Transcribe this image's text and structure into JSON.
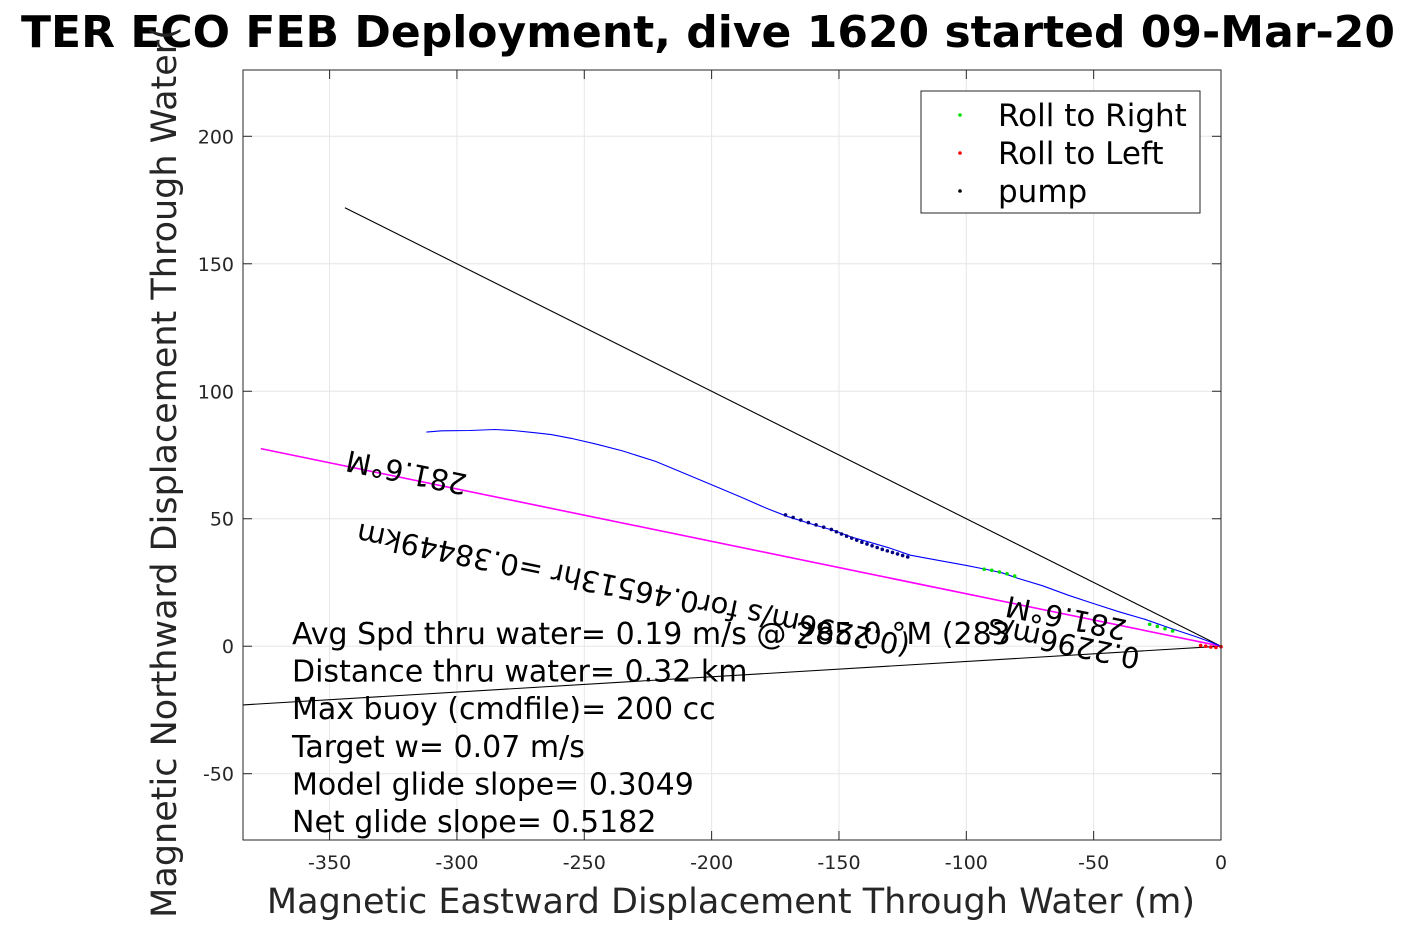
{
  "chart_data": {
    "type": "scatter",
    "title": "TER ECO FEB Deployment, dive 1620 started 09-Mar-20",
    "xlabel": "Magnetic Eastward Displacement Through Water (m)",
    "ylabel": "Magnetic Northward Displacement Through Water(",
    "xlim": [
      -384,
      0
    ],
    "ylim": [
      -76,
      226
    ],
    "xticks": [
      -350,
      -300,
      -250,
      -200,
      -150,
      -100,
      -50,
      0
    ],
    "yticks": [
      -50,
      0,
      50,
      100,
      150,
      200
    ],
    "xtick_labels": [
      "-350",
      "-300",
      "-250",
      "-200",
      "-150",
      "-100",
      "-50",
      "0"
    ],
    "ytick_labels": [
      "-50",
      "0",
      "50",
      "100",
      "150",
      "200"
    ],
    "grid": true,
    "legend": {
      "placement": "top-right",
      "entries": [
        {
          "name": "Roll to Right",
          "color": "#00dd00"
        },
        {
          "name": "Roll to Left",
          "color": "#ff0000"
        },
        {
          "name": "pump",
          "color": "#000000"
        }
      ]
    },
    "lines": [
      {
        "name": "heading-line-upper",
        "color": "#000000",
        "x": [
          -344,
          0
        ],
        "y": [
          172,
          0
        ]
      },
      {
        "name": "heading-line-lower",
        "color": "#000000",
        "x": [
          -384,
          0
        ],
        "y": [
          -23,
          0
        ]
      },
      {
        "name": "heading-line-magenta",
        "color": "#ff00ff",
        "x": [
          -377,
          0
        ],
        "y": [
          77.5,
          0
        ]
      },
      {
        "name": "track",
        "color": "#0000ff",
        "x": [
          -312,
          -306,
          -295,
          -285,
          -278,
          -270,
          -263,
          -255,
          -245,
          -235,
          -222,
          -210,
          -198,
          -188,
          -178,
          -170,
          -160,
          -152,
          -145,
          -138,
          -130,
          -122,
          -110,
          -100,
          -92,
          -86,
          -80,
          -70,
          -60,
          -50,
          -40,
          -30,
          -20,
          -10,
          -4,
          0
        ],
        "y": [
          84,
          84.5,
          84.6,
          85,
          84.6,
          83.8,
          83,
          81.5,
          79.2,
          76.6,
          72.5,
          67.5,
          62.5,
          58.3,
          53.9,
          50.8,
          47.7,
          45.4,
          42.8,
          40.8,
          38.5,
          35.7,
          33.5,
          31.7,
          30.1,
          28.8,
          26.7,
          23.7,
          20,
          16.7,
          13.5,
          10.6,
          7.1,
          3.8,
          1.6,
          0
        ]
      }
    ],
    "scatter_series": [
      {
        "name": "pump",
        "color": "#000080",
        "x": [
          -171,
          -168,
          -165,
          -162,
          -159,
          -156,
          -153,
          -151,
          -149,
          -147,
          -145,
          -143,
          -141,
          -139,
          -137,
          -135,
          -133,
          -131,
          -129,
          -127,
          -125,
          -123
        ],
        "y": [
          51.5,
          50.5,
          49.5,
          48.5,
          47.6,
          46.7,
          45.8,
          44.9,
          44,
          43.2,
          42.4,
          41.6,
          40.8,
          40.1,
          39.4,
          38.7,
          38,
          37.4,
          36.8,
          36.2,
          35.6,
          35
        ]
      },
      {
        "name": "Roll to Right",
        "color": "#00dd00",
        "x": [
          -93,
          -90,
          -87,
          -84,
          -81,
          -28,
          -25,
          -22,
          -19
        ],
        "y": [
          30.2,
          29.8,
          29.1,
          28.4,
          27.5,
          8.6,
          7.8,
          6.9,
          6
        ]
      },
      {
        "name": "Roll to Left",
        "color": "#ff0000",
        "x": [
          -8,
          -6,
          -4,
          -2,
          0
        ],
        "y": [
          0.3,
          0,
          -0.3,
          -0.5,
          -0.2
        ]
      }
    ],
    "annotations": [
      "Avg Spd thru water=  0.19 m/s @ 285.0 °M (283",
      "Distance thru water=  0.32 km",
      "Max buoy (cmdfile)= 200 cc",
      "Target w= 0.07 m/s",
      "Model glide slope= 0.3049",
      "Net glide slope= 0.5182"
    ],
    "rotated_labels": [
      {
        "text": "281.6°M",
        "x": -319,
        "y": 72,
        "angle": 191.6
      },
      {
        "text": "(0.2296m/s for0.46513hr =0.38449km",
        "x": -230,
        "y": 26,
        "angle": 191.6
      },
      {
        "text": "281.6°M",
        "x": -60,
        "y": 15,
        "angle": 191.6
      },
      {
        "text": "0.2296m/s",
        "x": -61,
        "y": 5,
        "angle": 191.6
      }
    ]
  }
}
